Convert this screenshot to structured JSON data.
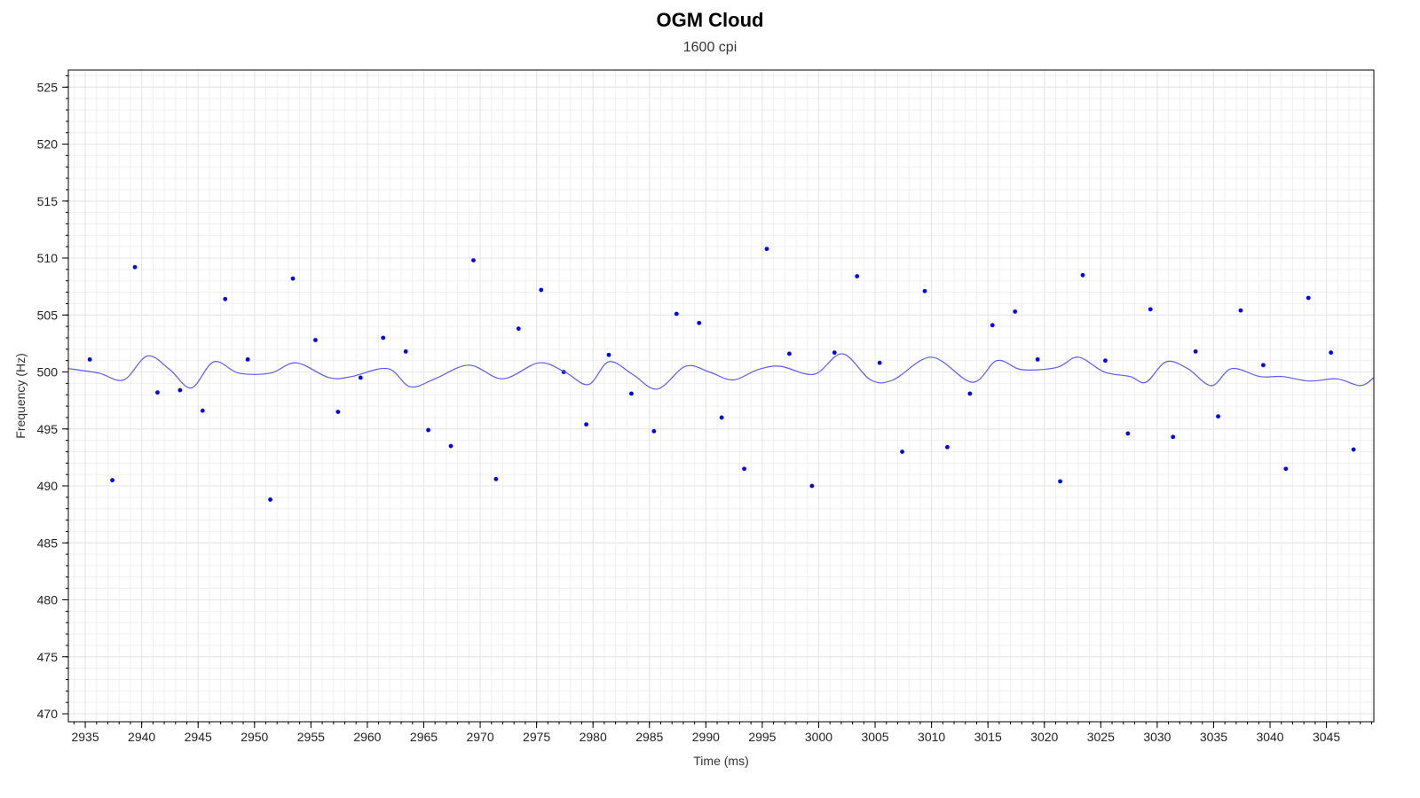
{
  "chart_data": {
    "type": "scatter",
    "title": "OGM Cloud",
    "subtitle": "1600 cpi",
    "xlabel": "Time (ms)",
    "ylabel": "Frequency (Hz)",
    "xlim": [
      2933.5,
      3049.2
    ],
    "ylim": [
      469.3,
      526.5
    ],
    "xticks": [
      2935,
      2940,
      2945,
      2950,
      2955,
      2960,
      2965,
      2970,
      2975,
      2980,
      2985,
      2990,
      2995,
      3000,
      3005,
      3010,
      3015,
      3020,
      3025,
      3030,
      3035,
      3040,
      3045
    ],
    "yticks": [
      470,
      475,
      480,
      485,
      490,
      495,
      500,
      505,
      510,
      515,
      520,
      525
    ],
    "grid": true,
    "colors": {
      "points": "#0000ee",
      "line": "#5b5bf0",
      "grid": "#e6e6e6",
      "axis": "#000000"
    },
    "series": [
      {
        "kind": "scatter",
        "x": [
          2935.4,
          2937.4,
          2939.4,
          2941.4,
          2943.4,
          2945.4,
          2947.4,
          2949.4,
          2951.4,
          2953.4,
          2955.4,
          2957.4,
          2959.4,
          2961.4,
          2963.4,
          2965.4,
          2967.4,
          2969.4,
          2971.4,
          2973.4,
          2975.4,
          2977.4,
          2979.4,
          2981.4,
          2983.4,
          2985.4,
          2987.4,
          2989.4,
          2991.4,
          2993.4,
          2995.4,
          2997.4,
          2999.4,
          3001.4,
          3003.4,
          3005.4,
          3007.4,
          3009.4,
          3011.4,
          3013.4,
          3015.4,
          3017.4,
          3019.4,
          3021.4,
          3023.4,
          3025.4,
          3027.4,
          3029.4,
          3031.4,
          3033.4,
          3035.4,
          3037.4,
          3039.4,
          3041.4,
          3043.4,
          3045.4,
          3047.4
        ],
        "y": [
          501.1,
          490.5,
          509.2,
          498.2,
          498.4,
          496.6,
          506.4,
          501.1,
          488.8,
          508.2,
          502.8,
          496.5,
          499.5,
          503.0,
          501.8,
          494.9,
          493.5,
          509.8,
          490.6,
          503.8,
          507.2,
          500.0,
          495.4,
          501.5,
          498.1,
          494.8,
          505.1,
          504.3,
          496.0,
          491.5,
          510.8,
          501.6,
          490.0,
          501.7,
          508.4,
          500.8,
          493.0,
          507.1,
          493.4,
          498.1,
          504.1,
          505.3,
          501.1,
          490.4,
          508.5,
          501.0,
          494.6,
          505.5,
          494.3,
          501.8,
          496.1,
          505.4,
          500.6,
          491.5,
          506.5,
          501.7,
          493.2
        ]
      },
      {
        "kind": "line",
        "x": [
          2933.5,
          2936.2,
          2938.4,
          2940.5,
          2942.5,
          2944.4,
          2946.4,
          2948.6,
          2951.4,
          2953.7,
          2956.6,
          2958.6,
          2961.8,
          2963.8,
          2966.0,
          2969.0,
          2972.0,
          2975.2,
          2977.5,
          2979.6,
          2981.4,
          2983.5,
          2985.7,
          2988.2,
          2990.3,
          2992.4,
          2994.6,
          2996.6,
          2999.6,
          3002.1,
          3004.6,
          3006.6,
          3010.0,
          3013.6,
          3015.8,
          3018.0,
          3021.1,
          3023.0,
          3025.3,
          3027.6,
          3029.0,
          3030.8,
          3032.7,
          3034.8,
          3036.6,
          3039.1,
          3041.1,
          3043.5,
          3045.9,
          3048.0,
          3049.2
        ],
        "y": [
          500.3,
          499.9,
          499.3,
          501.4,
          500.2,
          498.6,
          500.9,
          499.9,
          499.9,
          500.8,
          499.5,
          499.6,
          500.3,
          498.7,
          499.4,
          500.6,
          499.4,
          500.8,
          500.0,
          498.9,
          500.9,
          499.8,
          498.5,
          500.5,
          500.0,
          499.3,
          500.2,
          500.5,
          499.8,
          501.6,
          499.3,
          499.3,
          501.3,
          499.1,
          501.0,
          500.2,
          500.4,
          501.3,
          500.0,
          499.6,
          499.1,
          500.9,
          500.3,
          498.8,
          500.3,
          499.6,
          499.6,
          499.2,
          499.4,
          498.8,
          499.5
        ]
      }
    ]
  }
}
